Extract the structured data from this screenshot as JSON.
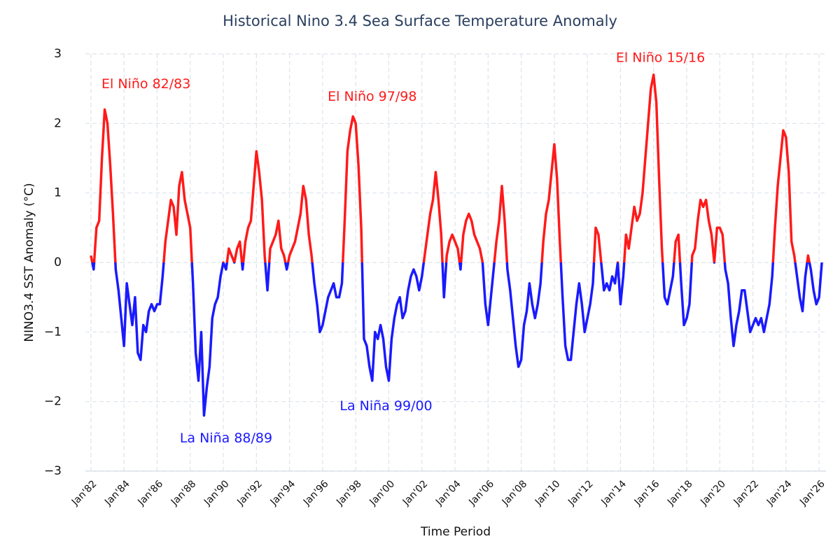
{
  "chart_data": {
    "type": "line",
    "title": "Historical Nino 3.4 Sea Surface Temperature Anomaly",
    "x_label": "Time Period",
    "y_label": "NINO3.4 SST Anomaly (°C)",
    "color_above_zero": "#ff1a1a",
    "color_below_zero": "#1a1aff",
    "grid": true,
    "xlim": [
      "1981-09",
      "2026-06"
    ],
    "ylim": [
      -3,
      3
    ],
    "yticks": [
      {
        "value": -3,
        "label": "−3"
      },
      {
        "value": -2,
        "label": "−2"
      },
      {
        "value": -1,
        "label": "−1"
      },
      0,
      1,
      2,
      3
    ],
    "xticks": [
      {
        "value": "1982-01",
        "label": "Jan'82"
      },
      {
        "value": "1984-01",
        "label": "Jan'84"
      },
      {
        "value": "1986-01",
        "label": "Jan'86"
      },
      {
        "value": "1988-01",
        "label": "Jan'88"
      },
      {
        "value": "1990-01",
        "label": "Jan'90"
      },
      {
        "value": "1992-01",
        "label": "Jan'92"
      },
      {
        "value": "1994-01",
        "label": "Jan'94"
      },
      {
        "value": "1996-01",
        "label": "Jan'96"
      },
      {
        "value": "1998-01",
        "label": "Jan'98"
      },
      {
        "value": "2000-01",
        "label": "Jan'00"
      },
      {
        "value": "2002-01",
        "label": "Jan'02"
      },
      {
        "value": "2004-01",
        "label": "Jan'04"
      },
      {
        "value": "2006-01",
        "label": "Jan'06"
      },
      {
        "value": "2008-01",
        "label": "Jan'08"
      },
      {
        "value": "2010-01",
        "label": "Jan'10"
      },
      {
        "value": "2012-01",
        "label": "Jan'12"
      },
      {
        "value": "2014-01",
        "label": "Jan'14"
      },
      {
        "value": "2016-01",
        "label": "Jan'16"
      },
      {
        "value": "2018-01",
        "label": "Jan'18"
      },
      {
        "value": "2020-01",
        "label": "Jan'20"
      },
      {
        "value": "2022-01",
        "label": "Jan'22"
      },
      {
        "value": "2024-01",
        "label": "Jan'24"
      },
      {
        "value": "2026-01",
        "label": "Jan'26"
      }
    ],
    "annotations": [
      {
        "text": "El Niño 82/83",
        "x": "1985-05",
        "y": 2.56,
        "color": "#ff1a1a"
      },
      {
        "text": "El Niño 97/98",
        "x": "1999-01",
        "y": 2.38,
        "color": "#ff1a1a"
      },
      {
        "text": "El Niño 15/16",
        "x": "2016-06",
        "y": 2.94,
        "color": "#ff1a1a"
      },
      {
        "text": "La Niña 88/89",
        "x": "1990-03",
        "y": -2.53,
        "color": "#1a1aff"
      },
      {
        "text": "La Niña 99/00",
        "x": "1999-11",
        "y": -2.07,
        "color": "#1a1aff"
      }
    ],
    "x": [
      "1982-01",
      "1982-03",
      "1982-05",
      "1982-07",
      "1982-09",
      "1982-11",
      "1983-01",
      "1983-03",
      "1983-05",
      "1983-07",
      "1983-09",
      "1983-11",
      "1984-01",
      "1984-03",
      "1984-05",
      "1984-07",
      "1984-09",
      "1984-11",
      "1985-01",
      "1985-03",
      "1985-05",
      "1985-07",
      "1985-09",
      "1985-11",
      "1986-01",
      "1986-03",
      "1986-05",
      "1986-07",
      "1986-09",
      "1986-11",
      "1987-01",
      "1987-03",
      "1987-05",
      "1987-07",
      "1987-09",
      "1987-11",
      "1988-01",
      "1988-03",
      "1988-05",
      "1988-07",
      "1988-09",
      "1988-11",
      "1989-01",
      "1989-03",
      "1989-05",
      "1989-07",
      "1989-09",
      "1989-11",
      "1990-01",
      "1990-03",
      "1990-05",
      "1990-07",
      "1990-09",
      "1990-11",
      "1991-01",
      "1991-03",
      "1991-05",
      "1991-07",
      "1991-09",
      "1991-11",
      "1992-01",
      "1992-03",
      "1992-05",
      "1992-07",
      "1992-09",
      "1992-11",
      "1993-01",
      "1993-03",
      "1993-05",
      "1993-07",
      "1993-09",
      "1993-11",
      "1994-01",
      "1994-03",
      "1994-05",
      "1994-07",
      "1994-09",
      "1994-11",
      "1995-01",
      "1995-03",
      "1995-05",
      "1995-07",
      "1995-09",
      "1995-11",
      "1996-01",
      "1996-03",
      "1996-05",
      "1996-07",
      "1996-09",
      "1996-11",
      "1997-01",
      "1997-03",
      "1997-05",
      "1997-07",
      "1997-09",
      "1997-11",
      "1998-01",
      "1998-03",
      "1998-05",
      "1998-07",
      "1998-09",
      "1998-11",
      "1999-01",
      "1999-03",
      "1999-05",
      "1999-07",
      "1999-09",
      "1999-11",
      "2000-01",
      "2000-03",
      "2000-05",
      "2000-07",
      "2000-09",
      "2000-11",
      "2001-01",
      "2001-03",
      "2001-05",
      "2001-07",
      "2001-09",
      "2001-11",
      "2002-01",
      "2002-03",
      "2002-05",
      "2002-07",
      "2002-09",
      "2002-11",
      "2003-01",
      "2003-03",
      "2003-05",
      "2003-07",
      "2003-09",
      "2003-11",
      "2004-01",
      "2004-03",
      "2004-05",
      "2004-07",
      "2004-09",
      "2004-11",
      "2005-01",
      "2005-03",
      "2005-05",
      "2005-07",
      "2005-09",
      "2005-11",
      "2006-01",
      "2006-03",
      "2006-05",
      "2006-07",
      "2006-09",
      "2006-11",
      "2007-01",
      "2007-03",
      "2007-05",
      "2007-07",
      "2007-09",
      "2007-11",
      "2008-01",
      "2008-03",
      "2008-05",
      "2008-07",
      "2008-09",
      "2008-11",
      "2009-01",
      "2009-03",
      "2009-05",
      "2009-07",
      "2009-09",
      "2009-11",
      "2010-01",
      "2010-03",
      "2010-05",
      "2010-07",
      "2010-09",
      "2010-11",
      "2011-01",
      "2011-03",
      "2011-05",
      "2011-07",
      "2011-09",
      "2011-11",
      "2012-01",
      "2012-03",
      "2012-05",
      "2012-07",
      "2012-09",
      "2012-11",
      "2013-01",
      "2013-03",
      "2013-05",
      "2013-07",
      "2013-09",
      "2013-11",
      "2014-01",
      "2014-03",
      "2014-05",
      "2014-07",
      "2014-09",
      "2014-11",
      "2015-01",
      "2015-03",
      "2015-05",
      "2015-07",
      "2015-09",
      "2015-11",
      "2016-01",
      "2016-03",
      "2016-05",
      "2016-07",
      "2016-09",
      "2016-11",
      "2017-01",
      "2017-03",
      "2017-05",
      "2017-07",
      "2017-09",
      "2017-11",
      "2018-01",
      "2018-03",
      "2018-05",
      "2018-07",
      "2018-09",
      "2018-11",
      "2019-01",
      "2019-03",
      "2019-05",
      "2019-07",
      "2019-09",
      "2019-11",
      "2020-01",
      "2020-03",
      "2020-05",
      "2020-07",
      "2020-09",
      "2020-11",
      "2021-01",
      "2021-03",
      "2021-05",
      "2021-07",
      "2021-09",
      "2021-11",
      "2022-01",
      "2022-03",
      "2022-05",
      "2022-07",
      "2022-09",
      "2022-11",
      "2023-01",
      "2023-03",
      "2023-05",
      "2023-07",
      "2023-09",
      "2023-11",
      "2024-01",
      "2024-03",
      "2024-05",
      "2024-07",
      "2024-09",
      "2024-11",
      "2025-01",
      "2025-03",
      "2025-05",
      "2025-07",
      "2025-09",
      "2025-11",
      "2026-01",
      "2026-03"
    ],
    "values": [
      0.1,
      -0.1,
      0.5,
      0.6,
      1.5,
      2.2,
      2.0,
      1.4,
      0.7,
      -0.1,
      -0.4,
      -0.8,
      -1.2,
      -0.3,
      -0.6,
      -0.9,
      -0.5,
      -1.3,
      -1.4,
      -0.9,
      -1.0,
      -0.7,
      -0.6,
      -0.7,
      -0.6,
      -0.6,
      -0.2,
      0.3,
      0.6,
      0.9,
      0.8,
      0.4,
      1.1,
      1.3,
      0.9,
      0.7,
      0.5,
      -0.3,
      -1.3,
      -1.7,
      -1.0,
      -2.2,
      -1.8,
      -1.5,
      -0.8,
      -0.6,
      -0.5,
      -0.2,
      0.0,
      -0.1,
      0.2,
      0.1,
      0.0,
      0.2,
      0.3,
      -0.1,
      0.3,
      0.5,
      0.6,
      1.1,
      1.6,
      1.3,
      0.9,
      0.1,
      -0.4,
      0.2,
      0.3,
      0.4,
      0.6,
      0.2,
      0.1,
      -0.1,
      0.1,
      0.2,
      0.3,
      0.5,
      0.7,
      1.1,
      0.9,
      0.4,
      0.1,
      -0.3,
      -0.6,
      -1.0,
      -0.9,
      -0.7,
      -0.5,
      -0.4,
      -0.3,
      -0.5,
      -0.5,
      -0.3,
      0.6,
      1.6,
      1.9,
      2.1,
      2.0,
      1.4,
      0.5,
      -1.1,
      -1.2,
      -1.5,
      -1.7,
      -1.0,
      -1.1,
      -0.9,
      -1.1,
      -1.5,
      -1.7,
      -1.1,
      -0.8,
      -0.6,
      -0.5,
      -0.8,
      -0.7,
      -0.4,
      -0.2,
      -0.1,
      -0.2,
      -0.4,
      -0.2,
      0.1,
      0.4,
      0.7,
      0.9,
      1.3,
      0.9,
      0.4,
      -0.5,
      0.1,
      0.3,
      0.4,
      0.3,
      0.2,
      -0.1,
      0.4,
      0.6,
      0.7,
      0.6,
      0.4,
      0.3,
      0.2,
      0.0,
      -0.6,
      -0.9,
      -0.5,
      -0.1,
      0.3,
      0.6,
      1.1,
      0.6,
      -0.1,
      -0.4,
      -0.8,
      -1.2,
      -1.5,
      -1.4,
      -0.9,
      -0.7,
      -0.3,
      -0.6,
      -0.8,
      -0.6,
      -0.3,
      0.3,
      0.7,
      0.9,
      1.3,
      1.7,
      1.2,
      0.3,
      -0.5,
      -1.2,
      -1.4,
      -1.4,
      -1.0,
      -0.6,
      -0.3,
      -0.6,
      -1.0,
      -0.8,
      -0.6,
      -0.3,
      0.5,
      0.4,
      0.0,
      -0.4,
      -0.3,
      -0.4,
      -0.2,
      -0.3,
      0.0,
      -0.6,
      -0.2,
      0.4,
      0.2,
      0.5,
      0.8,
      0.6,
      0.7,
      1.0,
      1.5,
      2.0,
      2.5,
      2.7,
      2.3,
      1.2,
      0.2,
      -0.5,
      -0.6,
      -0.4,
      -0.2,
      0.3,
      0.4,
      -0.3,
      -0.9,
      -0.8,
      -0.6,
      0.1,
      0.2,
      0.6,
      0.9,
      0.8,
      0.9,
      0.6,
      0.4,
      0.0,
      0.5,
      0.5,
      0.4,
      -0.1,
      -0.3,
      -0.8,
      -1.2,
      -0.9,
      -0.7,
      -0.4,
      -0.4,
      -0.7,
      -1.0,
      -0.9,
      -0.8,
      -0.9,
      -0.8,
      -1.0,
      -0.8,
      -0.6,
      -0.2,
      0.5,
      1.1,
      1.5,
      1.9,
      1.8,
      1.3,
      0.3,
      0.1,
      -0.2,
      -0.5,
      -0.7,
      -0.2,
      0.1,
      -0.1,
      -0.4,
      -0.6,
      -0.5,
      0.0
    ]
  }
}
